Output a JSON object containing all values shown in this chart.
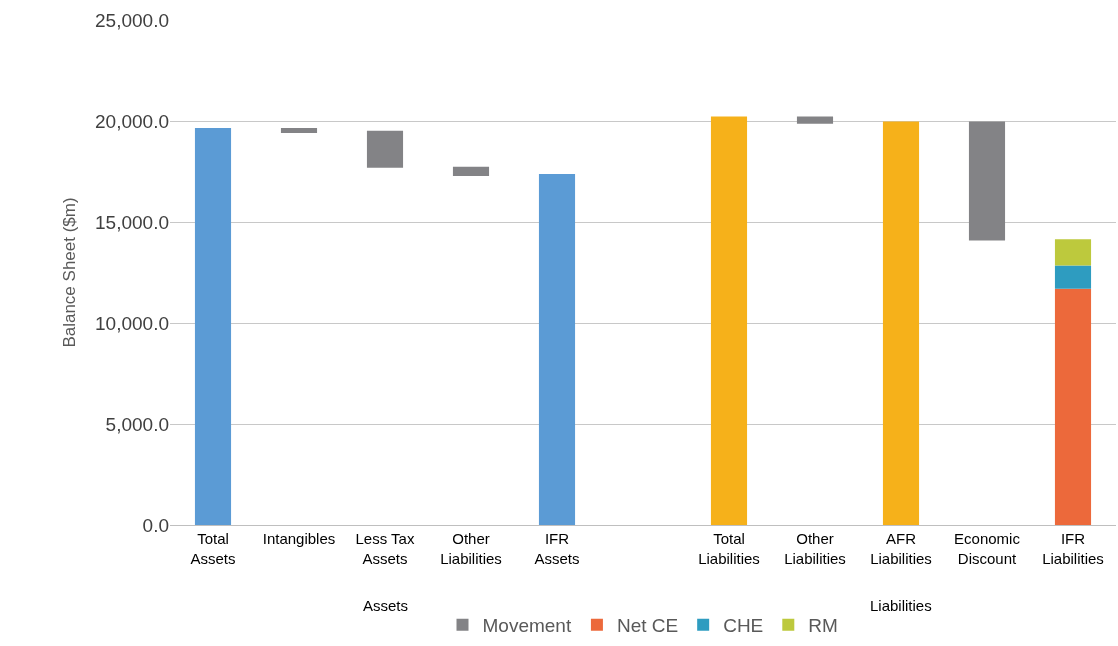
{
  "chart_data": {
    "type": "bar",
    "ylabel": "Balance Sheet ($m)",
    "categories": [
      "Total Assets",
      "Intangibles",
      "Less Tax Assets",
      "Other Liabilities",
      "IFR Assets",
      null,
      "Total Liabilities",
      "Other Liabilities",
      "AFR Liabilities",
      "Economic Discount",
      "IFR Liabilities"
    ],
    "series": [
      {
        "color": "#5b9bd5",
        "values": [
          19650,
          null,
          null,
          null,
          17380,
          null,
          null,
          null,
          null,
          null,
          null
        ]
      },
      {
        "color": "#f6b11a",
        "values": [
          null,
          null,
          null,
          null,
          null,
          null,
          20220,
          null,
          19970,
          null,
          null
        ]
      },
      {
        "name": "Movement",
        "color": "#838386",
        "base": [
          null,
          19400,
          17680,
          17280,
          null,
          null,
          null,
          19870,
          null,
          14090,
          null
        ],
        "values": [
          null,
          250,
          1840,
          450,
          null,
          null,
          null,
          350,
          null,
          5880,
          null
        ]
      },
      {
        "name": "Net CE",
        "color": "#ec693b",
        "values": [
          null,
          null,
          null,
          null,
          null,
          null,
          null,
          null,
          null,
          null,
          11700
        ]
      },
      {
        "name": "CHE",
        "color": "#2e9cc0",
        "values": [
          null,
          null,
          null,
          null,
          null,
          null,
          null,
          null,
          null,
          null,
          1150
        ]
      },
      {
        "name": "RM",
        "color": "#bdc93d",
        "values": [
          null,
          null,
          null,
          null,
          null,
          null,
          null,
          null,
          null,
          null,
          1300
        ]
      }
    ],
    "stacked": true,
    "ylim": [
      0,
      25000
    ],
    "yticks": [
      {
        "value": 0,
        "label": "0.0"
      },
      {
        "value": 5000,
        "label": "5,000.0"
      },
      {
        "value": 10000,
        "label": "10,000.0"
      },
      {
        "value": 15000,
        "label": "15,000.0"
      },
      {
        "value": 20000,
        "label": "20,000.0"
      },
      {
        "value": 25000,
        "label": "25,000.0"
      }
    ],
    "grid": "y",
    "legend": "bottom",
    "annotations": [
      "Assets",
      "Liabilities"
    ]
  }
}
